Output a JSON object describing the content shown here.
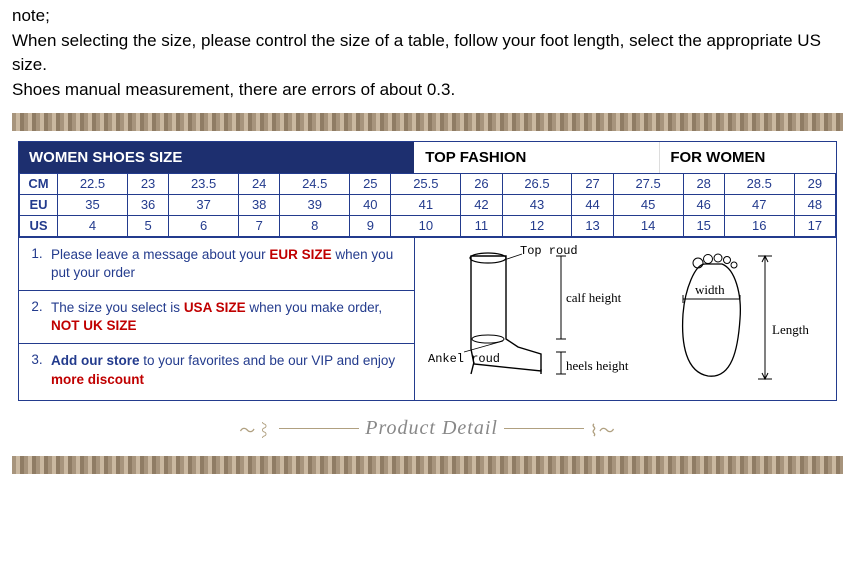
{
  "note": {
    "title": "note;",
    "line1": "When selecting the size, please control the size of a table, follow your foot length, select the appropriate US size.",
    "line2": "Shoes manual measurement, there are errors of about 0.3."
  },
  "header": {
    "left": "WOMEN SHOES SIZE",
    "mid": "TOP FASHION",
    "right": "FOR WOMEN"
  },
  "size_table": {
    "units": [
      "CM",
      "EU",
      "US"
    ],
    "rows": [
      [
        "22.5",
        "23",
        "23.5",
        "24",
        "24.5",
        "25",
        "25.5",
        "26",
        "26.5",
        "27",
        "27.5",
        "28",
        "28.5",
        "29"
      ],
      [
        "35",
        "36",
        "37",
        "38",
        "39",
        "40",
        "41",
        "42",
        "43",
        "44",
        "45",
        "46",
        "47",
        "48"
      ],
      [
        "4",
        "5",
        "6",
        "7",
        "8",
        "9",
        "10",
        "11",
        "12",
        "13",
        "14",
        "15",
        "16",
        "17"
      ]
    ]
  },
  "notes_list": [
    {
      "n": "1.",
      "pre": "Please leave a message about your ",
      "red": "EUR SIZE",
      "post": " when you put your order"
    },
    {
      "n": "2.",
      "pre": "The size you select is ",
      "red": "USA SIZE",
      "mid": " when you make order, ",
      "red2": "NOT UK SIZE",
      "post": ""
    },
    {
      "n": "3.",
      "boldblue": "Add our store",
      "mid2": " to your favorites and be our VIP and enjoy ",
      "red": "more discount",
      "post": ""
    }
  ],
  "diagram": {
    "top_roud": "Top roud",
    "ankel_roud": "Ankel roud",
    "calf_height": "calf height",
    "heels_height": "heels height",
    "width": "width",
    "length": "Length"
  },
  "product_detail": "Product Detail"
}
